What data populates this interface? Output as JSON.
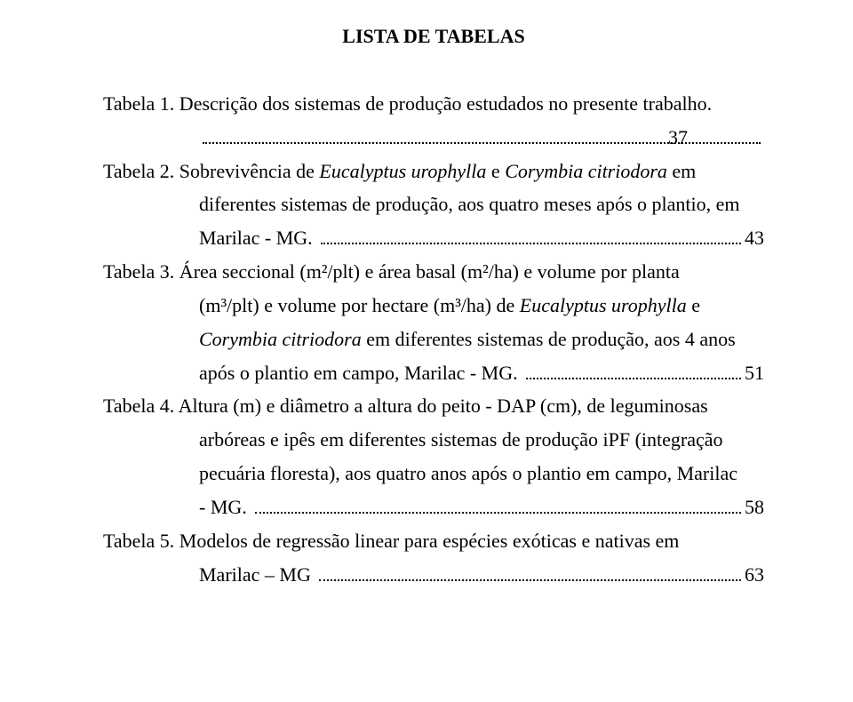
{
  "title": "LISTA DE TABELAS",
  "entries": [
    {
      "label": "Tabela 1.",
      "lines": [
        "Descrição dos sistemas de produção estudados no presente trabalho."
      ],
      "page": "37"
    },
    {
      "label": "Tabela 2.",
      "pre_lines": [
        "Sobrevivência de <i>Eucalyptus urophylla</i> e <i>Corymbia citriodora</i> em",
        "diferentes sistemas de produção, aos quatro meses após o plantio, em"
      ],
      "last_before": "Marilac - MG.",
      "page": "43"
    },
    {
      "label": "Tabela 3.",
      "pre_lines": [
        "Área seccional (m²/plt) e área basal (m²/ha) e volume por planta",
        "(m³/plt) e volume por hectare (m³/ha) de <i>Eucalyptus urophylla</i> e",
        "<i>Corymbia citriodora</i> em diferentes sistemas de produção, aos 4 anos"
      ],
      "last_before": "após o plantio em campo, Marilac - MG.",
      "page": "51"
    },
    {
      "label": "Tabela 4.",
      "pre_lines": [
        "Altura (m) e diâmetro a altura do peito - DAP (cm), de leguminosas",
        "arbóreas e ipês em diferentes sistemas de produção iPF (integração",
        "pecuária floresta), aos quatro anos após o plantio em campo, Marilac"
      ],
      "last_before": "- MG.",
      "page": "58"
    },
    {
      "label": "Tabela 5.",
      "pre_lines": [
        "Modelos de regressão linear para espécies exóticas e nativas em"
      ],
      "last_before": "Marilac – MG",
      "page": "63"
    }
  ]
}
